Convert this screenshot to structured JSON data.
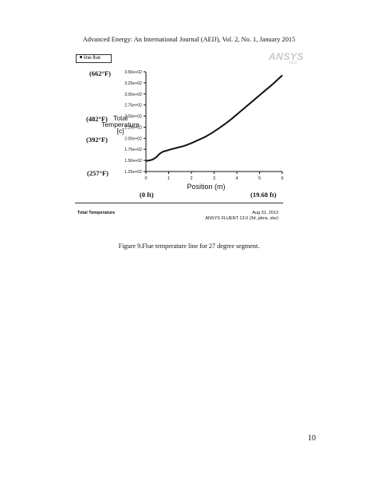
{
  "header": {
    "journal_line": "Advanced Energy: An International Journal (AEIJ), Vol. 2, No. 1, January 2015"
  },
  "legend": {
    "label": "line-flue"
  },
  "logo": {
    "text": "ANSYS",
    "subtext": "13.0"
  },
  "annotations": {
    "t662": "(662°F)",
    "t482": "(482°F)",
    "t392": "(392°F)",
    "t257": "(257°F)",
    "x_start": "(0 ft)",
    "x_end": "(19.68 ft)"
  },
  "chart_data": {
    "type": "line",
    "xlabel": "Position (m)",
    "ylabel_lines": [
      "Total",
      "Temperature",
      "[c]"
    ],
    "xlim": [
      0,
      6
    ],
    "ylim": [
      125,
      350
    ],
    "x_ticks": [
      0,
      1,
      2,
      3,
      4,
      5,
      6
    ],
    "y_ticks": [
      {
        "value": 125,
        "label": "1.25e+02"
      },
      {
        "value": 150,
        "label": "1.50e+02"
      },
      {
        "value": 175,
        "label": "1.75e+02"
      },
      {
        "value": 200,
        "label": "2.00e+02"
      },
      {
        "value": 225,
        "label": "2.25e+02"
      },
      {
        "value": 250,
        "label": "2.50e+02"
      },
      {
        "value": 275,
        "label": "2.75e+02"
      },
      {
        "value": 300,
        "label": "3.00e+02"
      },
      {
        "value": 325,
        "label": "3.25e+02"
      },
      {
        "value": 350,
        "label": "3.50e+02"
      }
    ],
    "series": [
      {
        "x": [
          0.0,
          0.15,
          0.3,
          0.45,
          0.6,
          0.75,
          0.9,
          1.1,
          1.4,
          1.7,
          2.0,
          2.3,
          2.6,
          2.9,
          3.2,
          3.5,
          3.8,
          4.1,
          4.4,
          4.7,
          5.0,
          5.3,
          5.6,
          6.0
        ],
        "y": [
          149,
          150,
          152,
          157,
          165,
          170,
          172,
          175,
          179,
          183,
          189,
          196,
          203,
          212,
          222,
          233,
          245,
          258,
          271,
          284,
          297,
          310,
          323,
          342
        ]
      }
    ]
  },
  "footer": {
    "label": "Total Temperature",
    "date": "Aug 31, 2013",
    "software": "ANSYS FLUENT 13.0 (3d, pbns, ske)"
  },
  "caption": "Figure 9.Flue temperature line for 27 degree segment.",
  "page_number": "10"
}
